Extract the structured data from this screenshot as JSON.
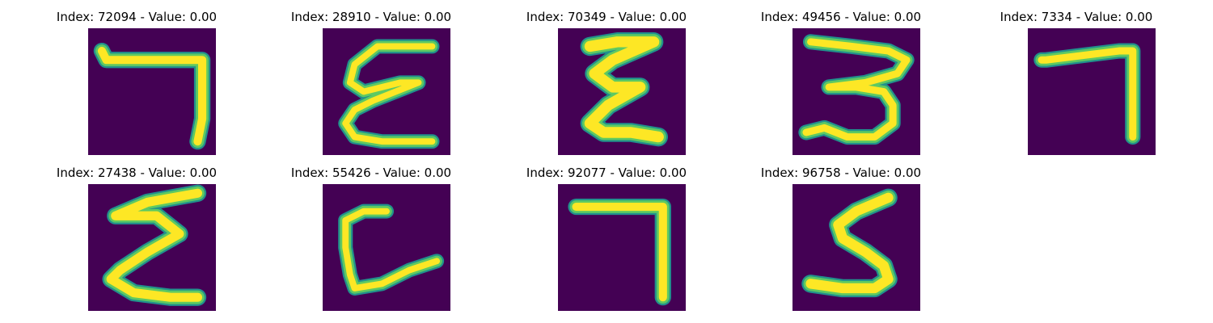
{
  "colors": {
    "background": "#440154",
    "stroke_outer": "#21918c",
    "stroke_mid": "#5ec962",
    "stroke_inner": "#fde725"
  },
  "panels": [
    {
      "title": "Index: 72094 - Value: 0.00",
      "glyph": "7",
      "icon": "digit-seven-image"
    },
    {
      "title": "Index: 28910 - Value: 0.00",
      "glyph": "E",
      "icon": "digit-epsilon-image"
    },
    {
      "title": "Index: 70349 - Value: 0.00",
      "glyph": "E",
      "icon": "digit-epsilon-image"
    },
    {
      "title": "Index: 49456 - Value: 0.00",
      "glyph": "3",
      "icon": "digit-three-image"
    },
    {
      "title": "Index: 7334 - Value: 0.00",
      "glyph": "7",
      "icon": "digit-seven-image"
    },
    {
      "title": "Index: 27438 - Value: 0.00",
      "glyph": "E",
      "icon": "digit-epsilon-image"
    },
    {
      "title": "Index: 55426 - Value: 0.00",
      "glyph": "C",
      "icon": "digit-c-image"
    },
    {
      "title": "Index: 92077 - Value: 0.00",
      "glyph": "7",
      "icon": "digit-seven-image"
    },
    {
      "title": "Index: 96758 - Value: 0.00",
      "glyph": "S",
      "icon": "digit-s-image"
    }
  ]
}
